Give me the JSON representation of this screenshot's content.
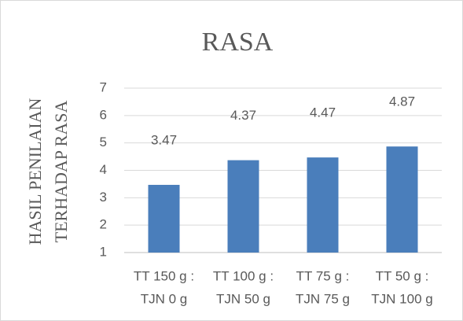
{
  "chart_data": {
    "type": "bar",
    "title": "RASA",
    "y_label": [
      "HASIL PENILAIAN",
      "TERHADAP RASA"
    ],
    "categories": [
      [
        "TT 150 g :",
        "TJN 0 g"
      ],
      [
        "TT 100 g :",
        "TJN 50 g"
      ],
      [
        "TT 75 g :",
        "TJN 75 g"
      ],
      [
        "TT 50 g :",
        "TJN 100 g"
      ]
    ],
    "values": [
      3.47,
      4.37,
      4.47,
      4.87
    ],
    "color": "#4a7ebb",
    "ylim": [
      1,
      7
    ],
    "yticks": [
      1,
      2,
      3,
      4,
      5,
      6,
      7
    ],
    "grid": true
  }
}
